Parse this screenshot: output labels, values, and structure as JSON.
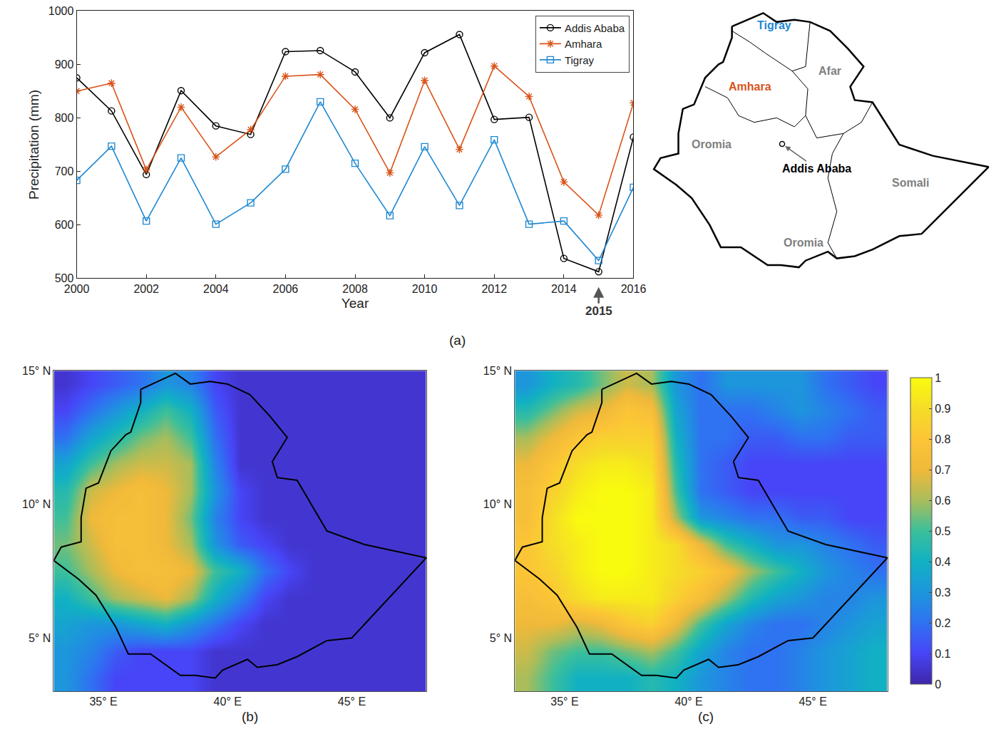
{
  "chart_data": [
    {
      "type": "line",
      "title": "(a)",
      "x_label": "Year",
      "y_label": "Precipitation (mm)",
      "x": [
        2000,
        2001,
        2002,
        2003,
        2004,
        2005,
        2006,
        2007,
        2008,
        2009,
        2010,
        2011,
        2012,
        2013,
        2014,
        2015,
        2016
      ],
      "series": [
        {
          "name": "Addis Ababa",
          "color": "#000000",
          "marker": "circle",
          "values": [
            875,
            813,
            694,
            851,
            785,
            769,
            924,
            926,
            886,
            800,
            922,
            956,
            797,
            801,
            537,
            512,
            764
          ]
        },
        {
          "name": "Amhara",
          "color": "#d95319",
          "marker": "asterisk",
          "values": [
            850,
            865,
            703,
            820,
            727,
            778,
            878,
            881,
            816,
            697,
            870,
            741,
            897,
            840,
            680,
            618,
            828
          ]
        },
        {
          "name": "Tigray",
          "color": "#1f88d2",
          "marker": "square",
          "values": [
            683,
            747,
            607,
            725,
            601,
            641,
            704,
            830,
            715,
            617,
            746,
            636,
            759,
            601,
            607,
            533,
            670
          ]
        }
      ],
      "xlim": [
        2000,
        2016
      ],
      "xticks": [
        2000,
        2002,
        2004,
        2006,
        2008,
        2010,
        2012,
        2014,
        2016
      ],
      "ylim": [
        500,
        1000
      ],
      "yticks": [
        500,
        600,
        700,
        800,
        900,
        1000
      ],
      "grid": false,
      "legend": "upper right",
      "annotations": [
        {
          "x": 2015,
          "text": "2015"
        }
      ]
    },
    {
      "type": "map",
      "border": {
        "lon": [
          36.5,
          37.9,
          38.5,
          39.3,
          40.0,
          40.9,
          41.7,
          42.4,
          41.8,
          42.0,
          42.8,
          44.0,
          45.5,
          48.0,
          47.0,
          45.0,
          44.0,
          42.8,
          42.0,
          41.2,
          40.8,
          39.8,
          39.5,
          38.7,
          38.1,
          36.9,
          36.0,
          35.9,
          35.5,
          34.7,
          34.0,
          33.0,
          33.3,
          34.1,
          34.1,
          34.3,
          34.8,
          35.3,
          35.9,
          36.1,
          36.5,
          36.5
        ],
        "lat": [
          14.3,
          14.9,
          14.5,
          14.6,
          14.5,
          14.1,
          13.3,
          12.5,
          11.6,
          11.0,
          10.9,
          9.0,
          8.5,
          8.0,
          7.0,
          5.0,
          4.9,
          4.3,
          4.0,
          3.9,
          4.2,
          3.8,
          3.5,
          3.6,
          3.6,
          4.4,
          4.4,
          4.6,
          5.4,
          6.6,
          7.2,
          7.9,
          8.4,
          8.6,
          9.5,
          10.6,
          10.8,
          12.0,
          12.6,
          12.7,
          13.8,
          14.3
        ]
      },
      "boundaries": [
        {
          "lon": [
            36.5,
            37.3,
            38.0,
            39.2,
            39.8,
            39.9,
            40.0
          ],
          "lat": [
            14.1,
            13.6,
            13.1,
            12.3,
            12.5,
            13.5,
            14.5
          ]
        },
        {
          "lon": [
            35.3,
            36.3,
            36.8,
            37.5,
            38.5,
            39.3,
            39.8,
            39.9,
            39.2
          ],
          "lat": [
            11.6,
            11.1,
            10.3,
            10.0,
            10.2,
            9.8,
            10.3,
            11.5,
            12.3
          ]
        },
        {
          "lon": [
            39.8,
            40.3,
            41.5,
            42.3,
            42.8
          ],
          "lat": [
            10.3,
            9.3,
            9.5,
            10.0,
            10.9
          ]
        },
        {
          "lon": [
            41.5,
            41.0,
            40.8,
            41.2,
            40.8,
            41.2
          ],
          "lat": [
            9.5,
            8.6,
            7.5,
            6.0,
            4.6,
            3.9
          ]
        }
      ],
      "labels": [
        {
          "text": "Tigray",
          "lon": 38.4,
          "lat": 14.35,
          "color": "#1f88d2"
        },
        {
          "text": "Amhara",
          "lon": 37.3,
          "lat": 11.6,
          "color": "#d95319"
        },
        {
          "text": "Afar",
          "lon": 40.9,
          "lat": 12.3,
          "color": "#7f7f7f"
        },
        {
          "text": "Oromia",
          "lon": 35.6,
          "lat": 9.0,
          "color": "#7f7f7f"
        },
        {
          "text": "Somali",
          "lon": 44.5,
          "lat": 7.3,
          "color": "#7f7f7f"
        },
        {
          "text": "Oromia",
          "lon": 39.7,
          "lat": 4.6,
          "color": "#7f7f7f"
        }
      ],
      "point": {
        "name": "Addis Ababa",
        "lon": 38.75,
        "lat": 9.03
      }
    },
    {
      "type": "heatmap",
      "title": "(b)",
      "x": [
        33.5,
        34.5,
        35.5,
        36.5,
        37.5,
        38.5,
        39.5,
        40.5,
        41.5,
        42.5,
        43.5,
        44.5,
        45.5,
        46.5,
        47.5
      ],
      "y": [
        3.5,
        4.5,
        5.5,
        6.5,
        7.5,
        8.5,
        9.5,
        10.5,
        11.5,
        12.5,
        13.5,
        14.5
      ],
      "z": [
        [
          0.3,
          0.2,
          0.1,
          0.1,
          0.1,
          0.1,
          0.05,
          0.05,
          0.05,
          0.05,
          0.05,
          0.05,
          0.05,
          0.05,
          0.05
        ],
        [
          0.3,
          0.25,
          0.15,
          0.1,
          0.1,
          0.1,
          0.05,
          0.05,
          0.05,
          0.05,
          0.05,
          0.05,
          0.05,
          0.05,
          0.05
        ],
        [
          0.35,
          0.3,
          0.3,
          0.35,
          0.4,
          0.3,
          0.2,
          0.1,
          0.05,
          0.05,
          0.05,
          0.05,
          0.05,
          0.05,
          0.05
        ],
        [
          0.4,
          0.5,
          0.6,
          0.65,
          0.7,
          0.6,
          0.4,
          0.25,
          0.1,
          0.05,
          0.05,
          0.05,
          0.05,
          0.05,
          0.05
        ],
        [
          0.5,
          0.6,
          0.7,
          0.75,
          0.75,
          0.7,
          0.5,
          0.4,
          0.2,
          0.1,
          0.05,
          0.05,
          0.05,
          0.05,
          0.05
        ],
        [
          0.55,
          0.65,
          0.75,
          0.75,
          0.7,
          0.6,
          0.3,
          0.15,
          0.1,
          0.05,
          0.05,
          0.05,
          0.05,
          0.05,
          0.05
        ],
        [
          0.5,
          0.7,
          0.75,
          0.75,
          0.7,
          0.55,
          0.25,
          0.1,
          0.05,
          0.05,
          0.05,
          0.05,
          0.05,
          0.05,
          0.05
        ],
        [
          0.45,
          0.65,
          0.7,
          0.75,
          0.7,
          0.6,
          0.3,
          0.1,
          0.05,
          0.05,
          0.05,
          0.05,
          0.05,
          0.05,
          0.05
        ],
        [
          0.35,
          0.5,
          0.6,
          0.65,
          0.65,
          0.6,
          0.25,
          0.05,
          0.05,
          0.05,
          0.05,
          0.05,
          0.05,
          0.05,
          0.05
        ],
        [
          0.2,
          0.35,
          0.45,
          0.55,
          0.6,
          0.5,
          0.2,
          0.05,
          0.05,
          0.05,
          0.05,
          0.05,
          0.05,
          0.05,
          0.05
        ],
        [
          0.1,
          0.2,
          0.3,
          0.4,
          0.5,
          0.4,
          0.15,
          0.05,
          0.05,
          0.05,
          0.05,
          0.05,
          0.05,
          0.05,
          0.05
        ],
        [
          0.05,
          0.1,
          0.15,
          0.2,
          0.3,
          0.25,
          0.1,
          0.05,
          0.05,
          0.05,
          0.05,
          0.05,
          0.05,
          0.05,
          0.05
        ]
      ],
      "xlim": [
        33,
        48
      ],
      "xticks": [
        {
          "value": 35,
          "label": "35° E"
        },
        {
          "value": 40,
          "label": "40° E"
        },
        {
          "value": 45,
          "label": "45° E"
        }
      ],
      "ylim": [
        3,
        15
      ],
      "yticks": [
        {
          "value": 5,
          "label": "5° N"
        },
        {
          "value": 10,
          "label": "10° N"
        },
        {
          "value": 15,
          "label": "15° N"
        }
      ],
      "grid": true,
      "border": {
        "lon": [
          36.5,
          37.9,
          38.5,
          39.3,
          40.0,
          40.9,
          41.7,
          42.4,
          41.8,
          42.0,
          42.8,
          44.0,
          45.5,
          48.0,
          47.0,
          45.0,
          44.0,
          42.8,
          42.0,
          41.2,
          40.8,
          39.8,
          39.5,
          38.7,
          38.1,
          36.9,
          36.0,
          35.9,
          35.5,
          34.7,
          34.0,
          33.0,
          33.3,
          34.1,
          34.1,
          34.3,
          34.8,
          35.3,
          35.9,
          36.1,
          36.5,
          36.5
        ],
        "lat": [
          14.3,
          14.9,
          14.5,
          14.6,
          14.5,
          14.1,
          13.3,
          12.5,
          11.6,
          11.0,
          10.9,
          9.0,
          8.5,
          8.0,
          7.0,
          5.0,
          4.9,
          4.3,
          4.0,
          3.9,
          4.2,
          3.8,
          3.5,
          3.6,
          3.6,
          4.4,
          4.4,
          4.6,
          5.4,
          6.6,
          7.2,
          7.9,
          8.4,
          8.6,
          9.5,
          10.6,
          10.8,
          12.0,
          12.6,
          12.7,
          13.8,
          14.3
        ]
      }
    },
    {
      "type": "heatmap",
      "title": "(c)",
      "x": [
        33.5,
        34.5,
        35.5,
        36.5,
        37.5,
        38.5,
        39.5,
        40.5,
        41.5,
        42.5,
        43.5,
        44.5,
        45.5,
        46.5,
        47.5
      ],
      "y": [
        3.5,
        4.5,
        5.5,
        6.5,
        7.5,
        8.5,
        9.5,
        10.5,
        11.5,
        12.5,
        13.5,
        14.5
      ],
      "z": [
        [
          0.6,
          0.5,
          0.4,
          0.4,
          0.4,
          0.45,
          0.4,
          0.3,
          0.25,
          0.2,
          0.2,
          0.25,
          0.3,
          0.35,
          0.4
        ],
        [
          0.65,
          0.55,
          0.5,
          0.5,
          0.55,
          0.6,
          0.5,
          0.35,
          0.25,
          0.2,
          0.2,
          0.25,
          0.3,
          0.35,
          0.4
        ],
        [
          0.7,
          0.7,
          0.65,
          0.7,
          0.8,
          0.85,
          0.7,
          0.5,
          0.35,
          0.25,
          0.2,
          0.2,
          0.25,
          0.3,
          0.35
        ],
        [
          0.75,
          0.8,
          0.9,
          0.95,
          0.95,
          0.95,
          0.85,
          0.75,
          0.6,
          0.45,
          0.35,
          0.3,
          0.25,
          0.25,
          0.3
        ],
        [
          0.8,
          0.85,
          0.95,
          1,
          1,
          0.95,
          0.9,
          0.85,
          0.75,
          0.6,
          0.5,
          0.4,
          0.3,
          0.25,
          0.2
        ],
        [
          0.8,
          0.9,
          0.95,
          1,
          1,
          0.95,
          0.9,
          0.7,
          0.5,
          0.4,
          0.3,
          0.3,
          0.25,
          0.2,
          0.15
        ],
        [
          0.75,
          0.9,
          1,
          1,
          1,
          0.95,
          0.6,
          0.3,
          0.25,
          0.2,
          0.2,
          0.15,
          0.15,
          0.1,
          0.1
        ],
        [
          0.75,
          0.85,
          0.95,
          1,
          1,
          0.95,
          0.5,
          0.2,
          0.15,
          0.1,
          0.1,
          0.1,
          0.1,
          0.1,
          0.1
        ],
        [
          0.7,
          0.8,
          0.9,
          0.95,
          0.95,
          0.9,
          0.45,
          0.2,
          0.15,
          0.1,
          0.1,
          0.1,
          0.1,
          0.1,
          0.1
        ],
        [
          0.6,
          0.7,
          0.8,
          0.85,
          0.85,
          0.85,
          0.4,
          0.2,
          0.2,
          0.15,
          0.15,
          0.2,
          0.2,
          0.15,
          0.15
        ],
        [
          0.45,
          0.55,
          0.65,
          0.7,
          0.8,
          0.75,
          0.35,
          0.2,
          0.2,
          0.2,
          0.25,
          0.3,
          0.25,
          0.2,
          0.15
        ],
        [
          0.3,
          0.4,
          0.45,
          0.55,
          0.65,
          0.6,
          0.3,
          0.2,
          0.3,
          0.3,
          0.3,
          0.3,
          0.2,
          0.15,
          0.1
        ]
      ],
      "xlim": [
        33,
        48
      ],
      "xticks": [
        {
          "value": 35,
          "label": "35° E"
        },
        {
          "value": 40,
          "label": "40° E"
        },
        {
          "value": 45,
          "label": "45° E"
        }
      ],
      "ylim": [
        3,
        15
      ],
      "yticks": [
        {
          "value": 5,
          "label": "5° N"
        },
        {
          "value": 10,
          "label": "10° N"
        },
        {
          "value": 15,
          "label": "15° N"
        }
      ],
      "grid": true,
      "colorbar": {
        "range": [
          0,
          1
        ],
        "ticks": [
          0,
          0.1,
          0.2,
          0.3,
          0.4,
          0.5,
          0.6,
          0.7,
          0.8,
          0.9,
          1
        ]
      },
      "border": {
        "lon": [
          36.5,
          37.9,
          38.5,
          39.3,
          40.0,
          40.9,
          41.7,
          42.4,
          41.8,
          42.0,
          42.8,
          44.0,
          45.5,
          48.0,
          47.0,
          45.0,
          44.0,
          42.8,
          42.0,
          41.2,
          40.8,
          39.8,
          39.5,
          38.7,
          38.1,
          36.9,
          36.0,
          35.9,
          35.5,
          34.7,
          34.0,
          33.0,
          33.3,
          34.1,
          34.1,
          34.3,
          34.8,
          35.3,
          35.9,
          36.1,
          36.5,
          36.5
        ],
        "lat": [
          14.3,
          14.9,
          14.5,
          14.6,
          14.5,
          14.1,
          13.3,
          12.5,
          11.6,
          11.0,
          10.9,
          9.0,
          8.5,
          8.0,
          7.0,
          5.0,
          4.9,
          4.3,
          4.0,
          3.9,
          4.2,
          3.8,
          3.5,
          3.6,
          3.6,
          4.4,
          4.4,
          4.6,
          5.4,
          6.6,
          7.2,
          7.9,
          8.4,
          8.6,
          9.5,
          10.6,
          10.8,
          12.0,
          12.6,
          12.7,
          13.8,
          14.3
        ]
      }
    }
  ]
}
